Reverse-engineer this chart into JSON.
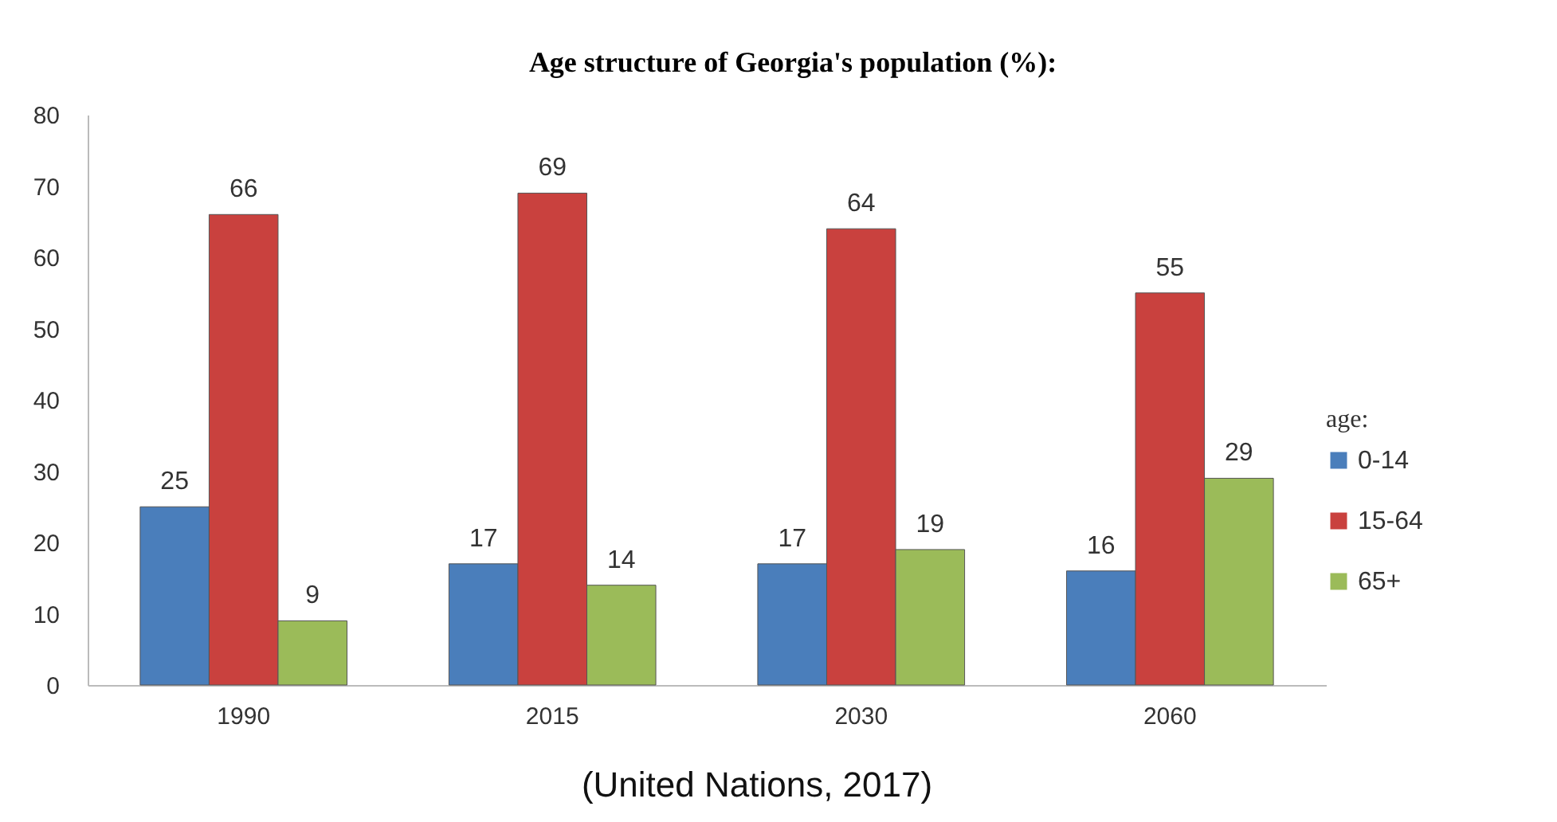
{
  "chart_data": {
    "type": "bar",
    "title": "Age structure of Georgia's population (%):",
    "categories": [
      "1990",
      "2015",
      "2030",
      "2060"
    ],
    "series": [
      {
        "name": "0-14",
        "color": "#4a7ebb",
        "values": [
          25,
          17,
          17,
          16
        ]
      },
      {
        "name": "15-64",
        "color": "#c9413e",
        "values": [
          66,
          69,
          64,
          55
        ]
      },
      {
        "name": "65+",
        "color": "#9bbb59",
        "values": [
          9,
          14,
          19,
          29
        ]
      }
    ],
    "legend_title": "age:",
    "legend": "right",
    "ylim": [
      0,
      80
    ],
    "yticks": [
      0,
      10,
      20,
      30,
      40,
      50,
      60,
      70,
      80
    ],
    "data_labels": true,
    "annotations": [
      "(United Nations, 2017)"
    ]
  }
}
